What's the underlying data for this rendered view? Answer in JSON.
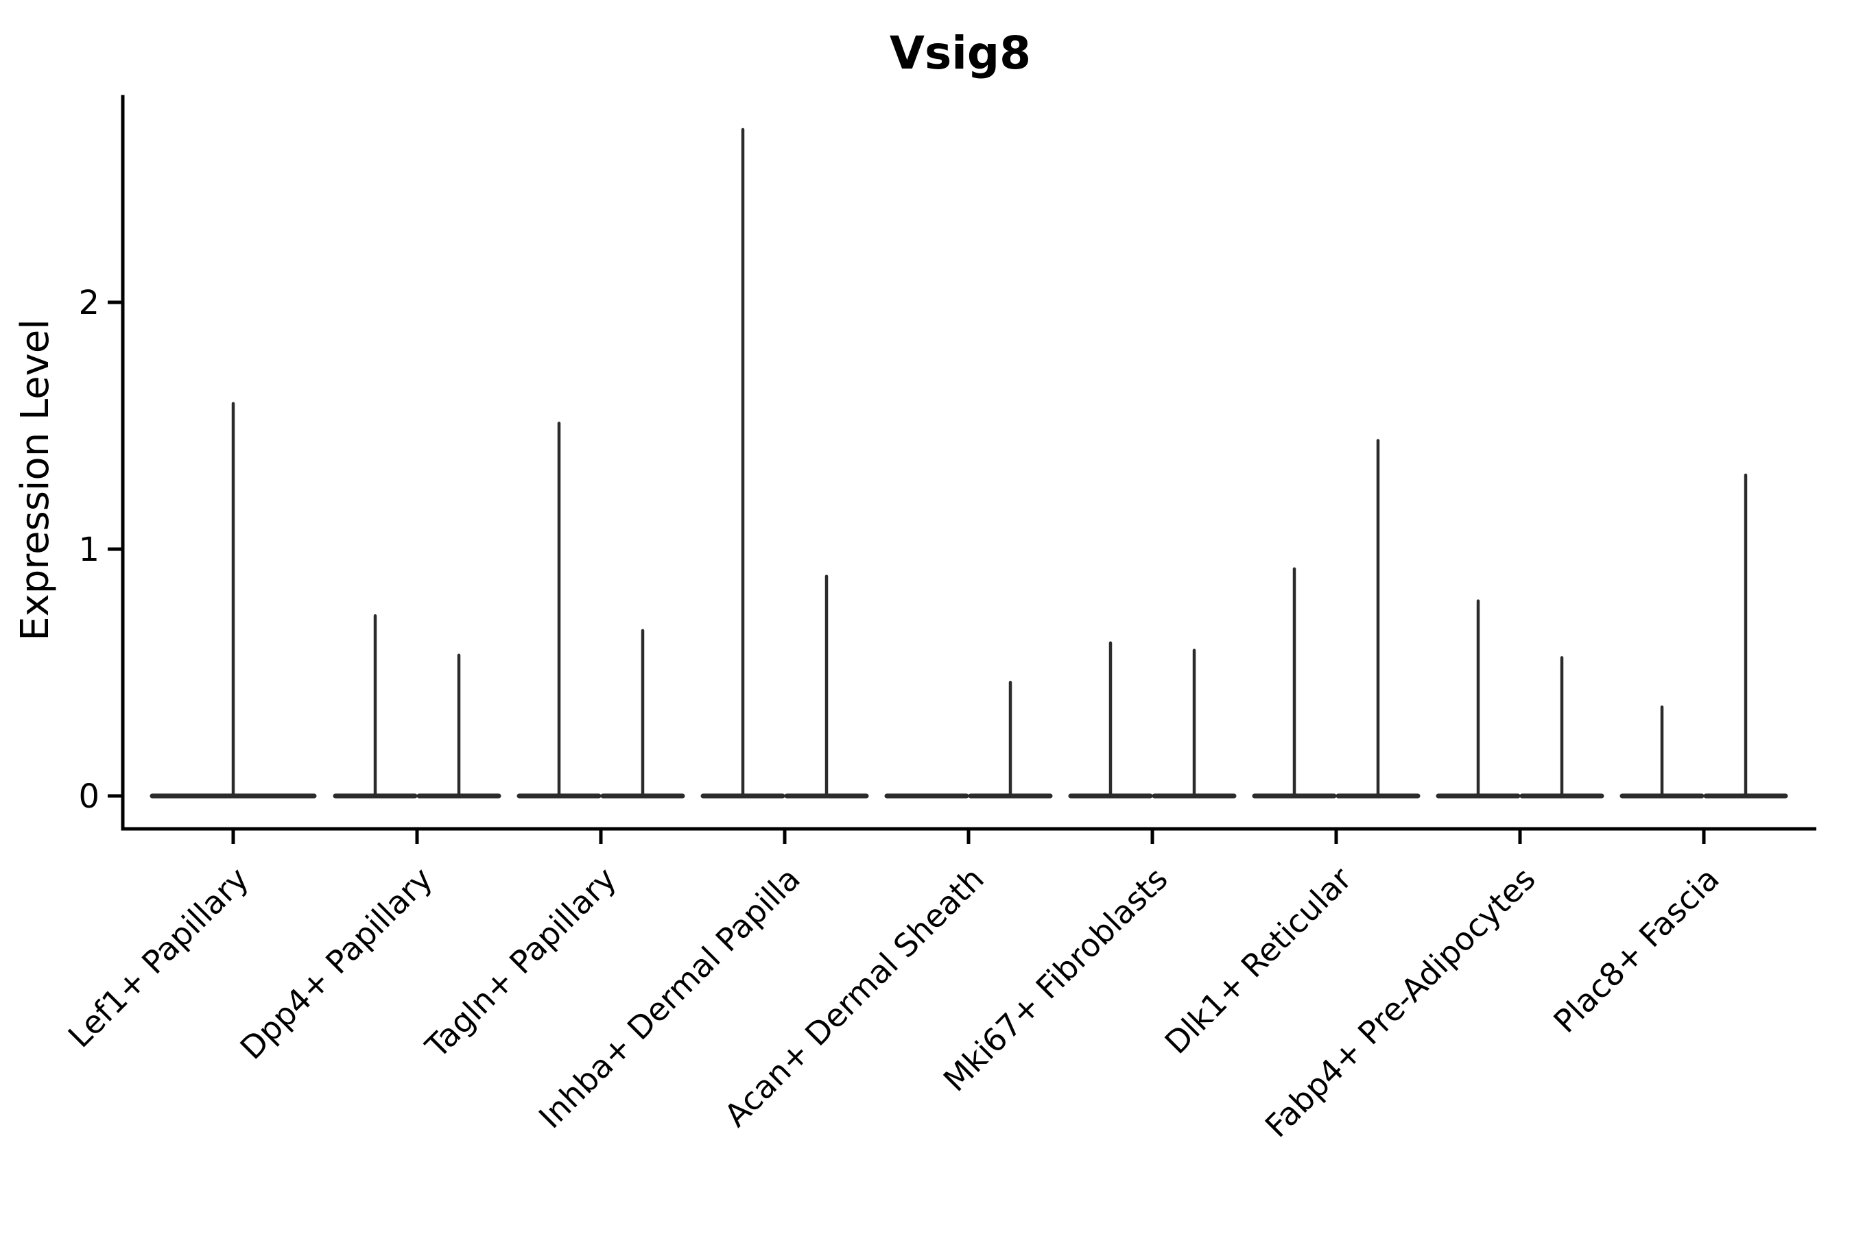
{
  "title": "Vsig8",
  "colors": {
    "axis": "#000000",
    "violin": "#2b2b2b",
    "background": "#ffffff"
  },
  "chart_data": {
    "type": "violin",
    "title": "Vsig8",
    "xlabel": "",
    "ylabel": "Expression Level",
    "ylim": [
      -0.13,
      2.84
    ],
    "yticks": {
      "values": [
        0,
        1,
        2
      ],
      "labels": [
        "0",
        "1",
        "2"
      ]
    },
    "grid": false,
    "legend": false,
    "categories": [
      "Lef1+ Papillary",
      "Dpp4+ Papillary",
      "Tagln+ Papillary",
      "Inhba+ Dermal Papilla",
      "Acan+ Dermal Sheath",
      "Mki67+ Fibroblasts",
      "Dlk1+ Reticular",
      "Fabp4+ Pre-Adipocytes",
      "Plac8+ Fascia"
    ],
    "groups": [
      {
        "category": "Lef1+ Papillary",
        "violins": [
          {
            "position": "center",
            "max": 1.59
          }
        ]
      },
      {
        "category": "Dpp4+ Papillary",
        "violins": [
          {
            "position": "left",
            "max": 0.73
          },
          {
            "position": "right",
            "max": 0.57
          }
        ]
      },
      {
        "category": "Tagln+ Papillary",
        "violins": [
          {
            "position": "left",
            "max": 1.51
          },
          {
            "position": "right",
            "max": 0.67
          }
        ]
      },
      {
        "category": "Inhba+ Dermal Papilla",
        "violins": [
          {
            "position": "left",
            "max": 2.7
          },
          {
            "position": "right",
            "max": 0.89
          }
        ]
      },
      {
        "category": "Acan+ Dermal Sheath",
        "violins": [
          {
            "position": "left",
            "max": 0.0
          },
          {
            "position": "right",
            "max": 0.46
          }
        ]
      },
      {
        "category": "Mki67+ Fibroblasts",
        "violins": [
          {
            "position": "left",
            "max": 0.62
          },
          {
            "position": "right",
            "max": 0.59
          }
        ]
      },
      {
        "category": "Dlk1+ Reticular",
        "violins": [
          {
            "position": "left",
            "max": 0.92
          },
          {
            "position": "right",
            "max": 1.44
          }
        ]
      },
      {
        "category": "Fabp4+ Pre-Adipocytes",
        "violins": [
          {
            "position": "left",
            "max": 0.79
          },
          {
            "position": "right",
            "max": 0.56
          }
        ]
      },
      {
        "category": "Plac8+ Fascia",
        "violins": [
          {
            "position": "left",
            "max": 0.36
          },
          {
            "position": "right",
            "max": 1.3
          }
        ]
      }
    ]
  }
}
